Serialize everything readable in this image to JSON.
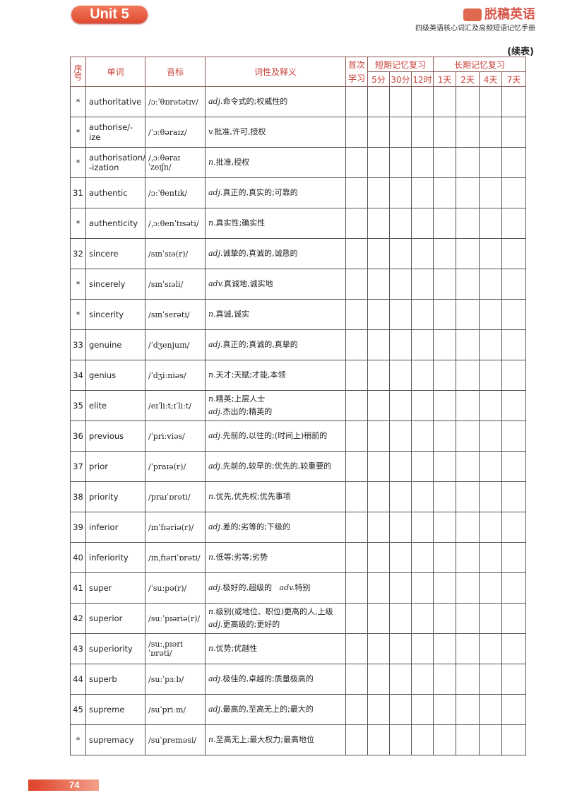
{
  "header": {
    "unit": "Unit 5",
    "brand": "脱稿英语",
    "subtitle": "四级英语核心词汇及高频短语记忆手册",
    "continued": "(续表)"
  },
  "table": {
    "headers": {
      "seq": "序号",
      "word": "单词",
      "ipa": "音标",
      "definition": "词性及释义",
      "first": "首次学习",
      "short_term": "短期记忆复习",
      "long_term": "长期记忆复习",
      "intervals": [
        "5分",
        "30分",
        "12时",
        "1天",
        "2天",
        "4天",
        "7天"
      ]
    },
    "rows": [
      {
        "seq": "*",
        "word": "authoritative",
        "ipa": "/ɔːˈθɒrətətɪv/",
        "pos": "adj.",
        "def": "命令式的;权威性的"
      },
      {
        "seq": "*",
        "word": "authorise/-ize",
        "ipa": "/ˈɔːθəraɪz/",
        "pos": "v.",
        "def": "批准,许可,授权"
      },
      {
        "seq": "*",
        "word": "authorisation/ -ization",
        "ipa": "/ˌɔːθəraɪˈzeɪʃn/",
        "pos": "n.",
        "def": "批准,授权"
      },
      {
        "seq": "31",
        "word": "authentic",
        "ipa": "/ɔːˈθentɪk/",
        "pos": "adj.",
        "def": "真正的,真实的;可靠的"
      },
      {
        "seq": "*",
        "word": "authenticity",
        "ipa": "/ˌɔːθenˈtɪsəti/",
        "pos": "n.",
        "def": "真实性;确实性"
      },
      {
        "seq": "32",
        "word": "sincere",
        "ipa": "/sɪnˈsɪə(r)/",
        "pos": "adj.",
        "def": "诚挚的,真诚的,诚恳的"
      },
      {
        "seq": "*",
        "word": "sincerely",
        "ipa": "/sɪnˈsɪəli/",
        "pos": "adv.",
        "def": "真诚地,诚实地"
      },
      {
        "seq": "*",
        "word": "sincerity",
        "ipa": "/sɪnˈserəti/",
        "pos": "n.",
        "def": "真诚,诚实"
      },
      {
        "seq": "33",
        "word": "genuine",
        "ipa": "/ˈdʒenjuɪn/",
        "pos": "adj.",
        "def": "真正的;真诚的,真挚的"
      },
      {
        "seq": "34",
        "word": "genius",
        "ipa": "/ˈdʒiːniəs/",
        "pos": "n.",
        "def": "天才;天赋;才能,本领"
      },
      {
        "seq": "35",
        "word": "elite",
        "ipa": "/eɪˈliːt;ɪˈliːt/",
        "pos": "n.",
        "def": "精英;上层人士",
        "pos2": "adj.",
        "def2": "杰出的;精英的"
      },
      {
        "seq": "36",
        "word": "previous",
        "ipa": "/ˈpriːviəs/",
        "pos": "adj.",
        "def": "先前的,以往的;(时间上)稍前的"
      },
      {
        "seq": "37",
        "word": "prior",
        "ipa": "/ˈpraɪə(r)/",
        "pos": "adj.",
        "def": "先前的,较早的;优先的,较重要的"
      },
      {
        "seq": "38",
        "word": "priority",
        "ipa": "/praɪˈɒrəti/",
        "pos": "n.",
        "def": "优先,优先权;优先事项"
      },
      {
        "seq": "39",
        "word": "inferior",
        "ipa": "/ɪnˈfɪəriə(r)/",
        "pos": "adj.",
        "def": "差的;劣等的;下级的"
      },
      {
        "seq": "40",
        "word": "inferiority",
        "ipa": "/ɪnˌfɪəriˈɒrəti/",
        "pos": "n.",
        "def": "低等;劣等;劣势"
      },
      {
        "seq": "41",
        "word": "super",
        "ipa": "/ˈsuːpə(r)/",
        "pos": "adj.",
        "def": "极好的,超级的",
        "pos2": "adv.",
        "def2": "特别",
        "inline2": true
      },
      {
        "seq": "42",
        "word": "superior",
        "ipa": "/suːˈpɪəriə(r)/",
        "pos": "n.",
        "def": "级别(或地位、职位)更高的人,上级",
        "pos2": "adj.",
        "def2": "更高级的;更好的"
      },
      {
        "seq": "43",
        "word": "superiority",
        "ipa": "/suːˌpɪəriˈɒrəti/",
        "pos": "n.",
        "def": "优势;优越性"
      },
      {
        "seq": "44",
        "word": "superb",
        "ipa": "/suːˈpɜːb/",
        "pos": "adj.",
        "def": "极佳的,卓越的;质量极高的"
      },
      {
        "seq": "45",
        "word": "supreme",
        "ipa": "/suˈpriːm/",
        "pos": "adj.",
        "def": "最高的,至高无上的;最大的"
      },
      {
        "seq": "*",
        "word": "supremacy",
        "ipa": "/suˈpreməsi/",
        "pos": "n.",
        "def": "至高无上;最大权力;最高地位"
      }
    ]
  },
  "footer": {
    "page": "74"
  },
  "colors": {
    "accent": "#e0492f",
    "header_text": "#c8423a"
  }
}
